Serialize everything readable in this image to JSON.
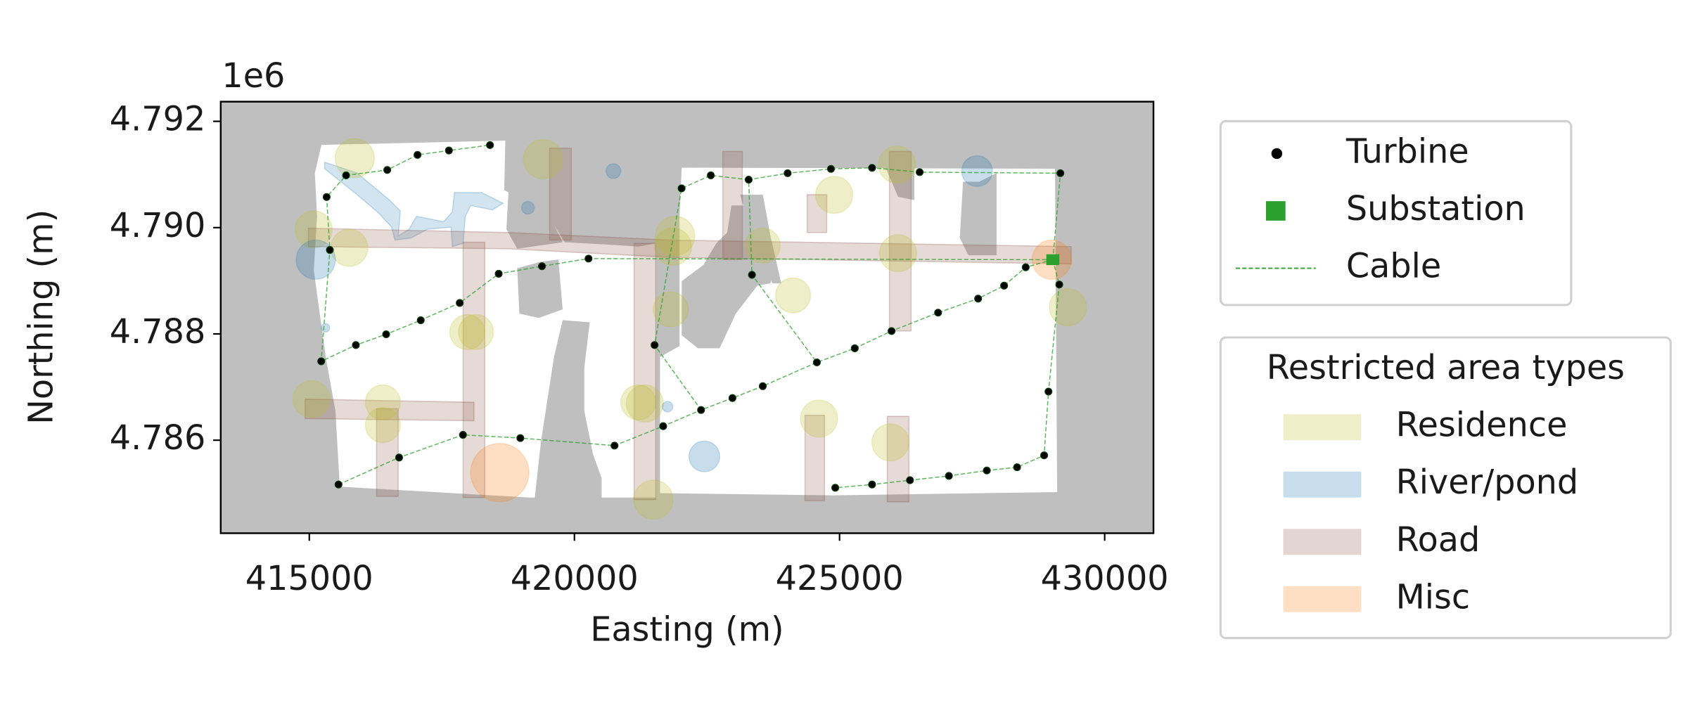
{
  "chart_data": {
    "type": "scatter",
    "xlabel": "Easting (m)",
    "ylabel": "Northing (m)",
    "y_offset_label": "1e6",
    "xlim": [
      413330,
      430920
    ],
    "ylim": [
      4784250,
      4792370
    ],
    "xticks": [
      415000,
      420000,
      425000,
      430000
    ],
    "yticks": [
      {
        "value": 4786000,
        "label": "4.786"
      },
      {
        "value": 4788000,
        "label": "4.788"
      },
      {
        "value": 4790000,
        "label": "4.790"
      },
      {
        "value": 4792000,
        "label": "4.792"
      }
    ],
    "series": [
      {
        "name": "Turbine",
        "color": "#000000",
        "marker": "circle",
        "x": [
          418408,
          417633,
          417041,
          416470,
          415694,
          415327,
          415388,
          415225,
          415878,
          416449,
          417102,
          417837,
          418572,
          419388,
          420266,
          415551,
          416694,
          417898,
          418980,
          420756,
          421511,
          422021,
          422572,
          423286,
          424021,
          424838,
          425613,
          426511,
          423348,
          421674,
          422388,
          422980,
          423552,
          424572,
          425287,
          425981,
          426858,
          427613,
          428103,
          428511,
          429144,
          429165,
          424919,
          425613,
          426328,
          427062,
          427777,
          428348,
          428858,
          428940
        ],
        "y": [
          4791553,
          4791451,
          4791369,
          4791085,
          4790983,
          4790576,
          4789580,
          4787485,
          4787790,
          4787993,
          4788257,
          4788583,
          4789132,
          4789274,
          4789417,
          4785166,
          4785674,
          4786101,
          4786040,
          4785898,
          4787790,
          4790739,
          4790983,
          4790902,
          4791024,
          4791105,
          4791125,
          4791044,
          4789112,
          4786264,
          4786569,
          4786793,
          4787017,
          4787464,
          4787729,
          4788054,
          4788400,
          4788664,
          4788908,
          4789254,
          4788929,
          4791024,
          4785105,
          4785166,
          4785247,
          4785328,
          4785430,
          4785491,
          4785715,
          4786915
        ]
      },
      {
        "name": "Substation",
        "color": "#2ca02c",
        "marker": "square",
        "x": [
          429022
        ],
        "y": [
          4789396
        ]
      }
    ],
    "cables": {
      "name": "Cable",
      "color": "#2ca02c",
      "paths": [
        {
          "x": [
            429022,
            428511,
            428103,
            427613,
            426858,
            425981,
            425287,
            424572,
            423552,
            422980,
            422388,
            421674,
            420756,
            418980,
            417898,
            416694,
            415551
          ],
          "y": [
            4789396,
            4789254,
            4788908,
            4788664,
            4788400,
            4788054,
            4787729,
            4787464,
            4787017,
            4786793,
            4786569,
            4786264,
            4785898,
            4786040,
            4786101,
            4785674,
            4785166
          ]
        },
        {
          "x": [
            429022,
            429144,
            428940,
            428858,
            428348,
            427777,
            427062,
            426328,
            425613,
            424919
          ],
          "y": [
            4789396,
            4788929,
            4786915,
            4785715,
            4785491,
            4785430,
            4785328,
            4785247,
            4785166,
            4785105
          ]
        },
        {
          "x": [
            429022,
            429165,
            426511,
            425613,
            424838,
            424021,
            423286,
            423348,
            424572
          ],
          "y": [
            4789396,
            4791024,
            4791044,
            4791125,
            4791105,
            4791024,
            4790902,
            4789112,
            4787464
          ]
        },
        {
          "x": [
            423286,
            422572,
            422021,
            421511,
            422388
          ],
          "y": [
            4790902,
            4790983,
            4790739,
            4787790,
            4786569
          ]
        },
        {
          "x": [
            429022,
            420266,
            419388,
            418572,
            417837,
            417102,
            416449,
            415878,
            415225,
            415388,
            415327,
            415694,
            416470,
            417041,
            417633,
            418408
          ],
          "y": [
            4789396,
            4789417,
            4789274,
            4789132,
            4788583,
            4788257,
            4787993,
            4787790,
            4787485,
            4789580,
            4790576,
            4790983,
            4791085,
            4791369,
            4791451,
            4791553
          ]
        }
      ]
    },
    "restricted_areas": {
      "title": "Restricted area types",
      "types": [
        {
          "name": "Residence",
          "color": "#bcbd22",
          "x": [
            415857,
            415082,
            415755,
            419409,
            421899,
            421858,
            421817,
            418143,
            417980,
            415041,
            416388,
            416388,
            421327,
            421205,
            421490,
            423552,
            424123,
            424899,
            424613,
            426083,
            426103,
            425960,
            429307
          ],
          "y": [
            4791308,
            4789966,
            4789620,
            4791288,
            4789844,
            4789641,
            4788461,
            4788034,
            4788034,
            4786773,
            4786712,
            4786284,
            4786691,
            4786712,
            4784881,
            4789661,
            4788725,
            4790617,
            4786407,
            4791186,
            4789519,
            4785959,
            4788502
          ],
          "r": [
            370,
            350,
            350,
            370,
            370,
            350,
            330,
            330,
            330,
            350,
            330,
            330,
            350,
            330,
            370,
            330,
            330,
            350,
            350,
            350,
            350,
            350,
            350
          ]
        },
        {
          "name": "River/pond",
          "color": "#1f77b4",
          "x": [
            415122,
            422450,
            427593,
            420735,
            419123,
            415306,
            421756
          ],
          "y": [
            4789397,
            4785695,
            4791064,
            4791064,
            4790373,
            4788115,
            4786630
          ],
          "r": [
            370,
            290,
            290,
            140,
            120,
            80,
            100
          ]
        },
        {
          "name": "Road",
          "color": "#8c564b"
        },
        {
          "name": "Misc",
          "color": "#ff7f0e",
          "x": [
            418592,
            429001
          ],
          "y": [
            4785390,
            4789397
          ],
          "r": [
            550,
            370
          ]
        }
      ]
    }
  }
}
